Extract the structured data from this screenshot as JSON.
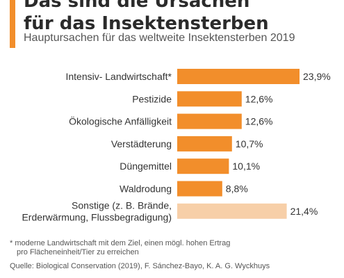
{
  "header": {
    "title_line1": "Das sind die Ursachen",
    "title_line2": "für das Insektensterben",
    "subtitle": "Hauptursachen für das weltweite Insektensterben 2019"
  },
  "chart_data": {
    "type": "bar",
    "orientation": "horizontal",
    "categories": [
      [
        "Intensiv- Landwirtschaft*"
      ],
      [
        "Pestizide"
      ],
      [
        "Ökologische Anfälligkeit"
      ],
      [
        "Verstädterung"
      ],
      [
        "Düngemittel"
      ],
      [
        "Waldrodung"
      ],
      [
        "Sonstige (z. B. Brände,",
        "Erderwärmung, Flussbegradigung)"
      ]
    ],
    "values": [
      23.9,
      12.6,
      12.6,
      10.7,
      10.1,
      8.8,
      21.4
    ],
    "value_labels": [
      "23,9%",
      "12,6%",
      "12,6%",
      "10,7%",
      "10,1%",
      "8,8%",
      "21,4%"
    ],
    "colors": [
      "#f28e2b",
      "#f28e2b",
      "#f28e2b",
      "#f28e2b",
      "#f28e2b",
      "#f28e2b",
      "#f7cfa8"
    ],
    "xlim": [
      0,
      23.9
    ],
    "grid": false,
    "legend": "none"
  },
  "footnote": {
    "line1": "* moderne Landwirtschaft mit dem Ziel, einen mögl. hohen Ertrag",
    "line2": "pro Flächeneinheit/Tier zu erreichen"
  },
  "source": "Quelle: Biological Conservation (2019), F. Sánchez-Bayo, K. A. G. Wyckhuys"
}
